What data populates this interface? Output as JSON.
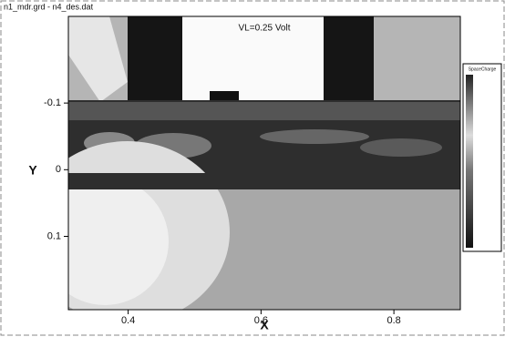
{
  "chart_data": {
    "type": "contour",
    "file_label": "n1_mdr.grd - n4_des.dat",
    "title": "VL=0.25 Volt",
    "xlabel": "X",
    "ylabel": "Y",
    "xlim": [
      0.31,
      0.9
    ],
    "ylim": [
      -0.23,
      0.21
    ],
    "xticks": [
      0.4,
      0.6,
      0.8
    ],
    "yticks": [
      -0.1,
      0,
      0.1
    ],
    "y_inverted": true,
    "legend_title": "SpaceCharge"
  }
}
